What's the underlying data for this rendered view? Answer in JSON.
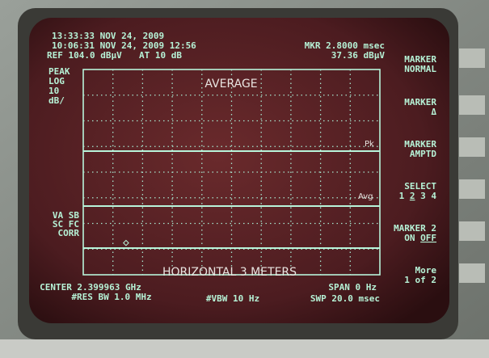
{
  "header": {
    "clock": "13:33:33 NOV 24, 2009",
    "trace_stamp": "10:06:31 NOV 24, 2009 12:56",
    "ref_level": "REF 104.0 dBμV",
    "attenuation": "AT 10 dB",
    "marker_time": "MKR 2.8000 msec",
    "marker_level": "37.36 dBμV"
  },
  "left_labels": [
    "PEAK",
    "LOG",
    "10",
    "dB/"
  ],
  "left_labels_lower": [
    "VA SB",
    "SC FC",
    "CORR"
  ],
  "annotations": {
    "top": "AVERAGE",
    "peak": "Pk",
    "average": "Avg",
    "marker": "◇",
    "bottom": "HORIZONTAL  3 METERS"
  },
  "softkeys": [
    [
      [
        {
          "text": "MARKER"
        }
      ],
      [
        {
          "text": "NORMAL"
        }
      ]
    ],
    [
      [
        {
          "text": "MARKER"
        }
      ],
      [
        {
          "text": "Δ"
        }
      ]
    ],
    [
      [
        {
          "text": "MARKER"
        }
      ],
      [
        {
          "text": "AMPTD"
        }
      ]
    ],
    [
      [
        {
          "text": "SELECT"
        }
      ],
      [
        {
          "text": "1 "
        },
        {
          "text": "2",
          "underline": true
        },
        {
          "text": " 3 4"
        }
      ]
    ],
    [
      [
        {
          "text": "MARKER 2"
        }
      ],
      [
        {
          "text": "ON "
        },
        {
          "text": "OFF",
          "underline": true
        }
      ]
    ],
    [
      [
        {
          "text": "More"
        }
      ],
      [
        {
          "text": "1 of 2"
        }
      ]
    ]
  ],
  "footer": {
    "center": "CENTER 2.399963 GHz",
    "span": "SPAN 0 Hz",
    "res_bw": "#RES BW 1.0 MHz",
    "vbw": "#VBW 10 Hz",
    "sweep": "SWP 20.0 msec"
  }
}
